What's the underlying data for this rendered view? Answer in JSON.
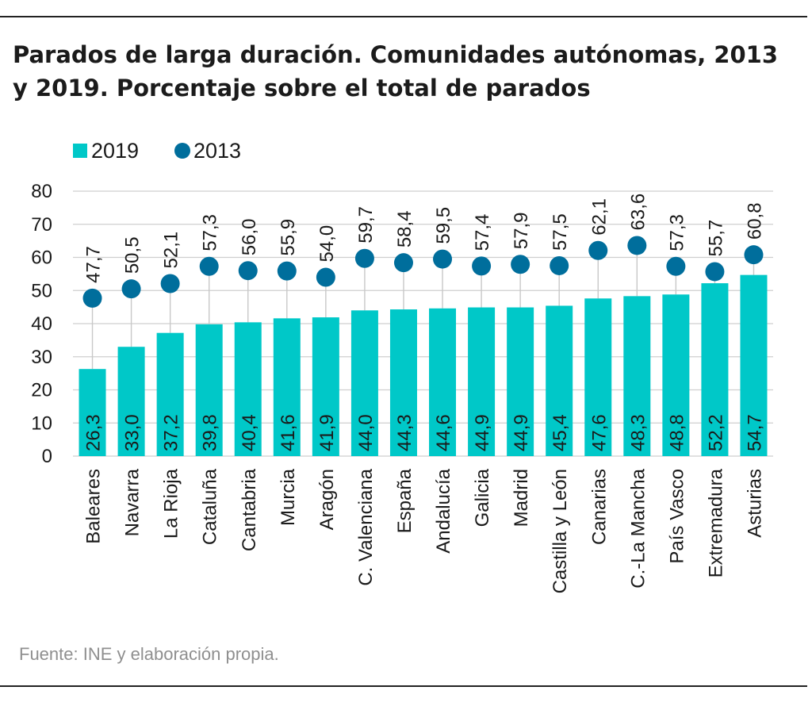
{
  "header": {
    "title": "Parados de larga duración. Comunidades autónomas, 2013 y 2019. Porcentaje sobre el total de parados"
  },
  "footer": {
    "source": "Fuente: INE y elaboración propia."
  },
  "colors": {
    "bar_2019": "#00c8c8",
    "dot_2013": "#006e9c",
    "grid": "#cfcfcf",
    "stem": "#c8c8c8"
  },
  "chart_data": {
    "type": "bar",
    "title": "Parados de larga duración. Comunidades autónomas, 2013 y 2019. Porcentaje sobre el total de parados",
    "xlabel": "",
    "ylabel": "",
    "ylim": [
      0,
      80
    ],
    "yticks": [
      0,
      10,
      20,
      30,
      40,
      50,
      60,
      70,
      80
    ],
    "grid": true,
    "legend_position": "top-left",
    "categories": [
      "Baleares",
      "Navarra",
      "La Rioja",
      "Cataluña",
      "Cantabria",
      "Murcia",
      "Aragón",
      "C. Valenciana",
      "España",
      "Andalucía",
      "Galicia",
      "Madrid",
      "Castilla y León",
      "Canarias",
      "C.-La Mancha",
      "País Vasco",
      "Extremadura",
      "Asturias"
    ],
    "series": [
      {
        "name": "2019",
        "kind": "bar",
        "values": [
          26.3,
          33.0,
          37.2,
          39.8,
          40.4,
          41.6,
          41.9,
          44.0,
          44.3,
          44.6,
          44.9,
          44.9,
          45.4,
          47.6,
          48.3,
          48.8,
          52.2,
          54.7
        ],
        "labels": [
          "26,3",
          "33,0",
          "37,2",
          "39,8",
          "40,4",
          "41,6",
          "41,9",
          "44,0",
          "44,3",
          "44,6",
          "44,9",
          "44,9",
          "45,4",
          "47,6",
          "48,3",
          "48,8",
          "52,2",
          "54,7"
        ]
      },
      {
        "name": "2013",
        "kind": "dot",
        "values": [
          47.7,
          50.5,
          52.1,
          57.3,
          56.0,
          55.9,
          54.0,
          59.7,
          58.4,
          59.5,
          57.4,
          57.9,
          57.5,
          62.1,
          63.6,
          57.3,
          55.7,
          60.8
        ],
        "labels": [
          "47,7",
          "50,5",
          "52,1",
          "57,3",
          "56,0",
          "55,9",
          "54,0",
          "59,7",
          "58,4",
          "59,5",
          "57,4",
          "57,9",
          "57,5",
          "62,1",
          "63,6",
          "57,3",
          "55,7",
          "60,8"
        ]
      }
    ]
  }
}
